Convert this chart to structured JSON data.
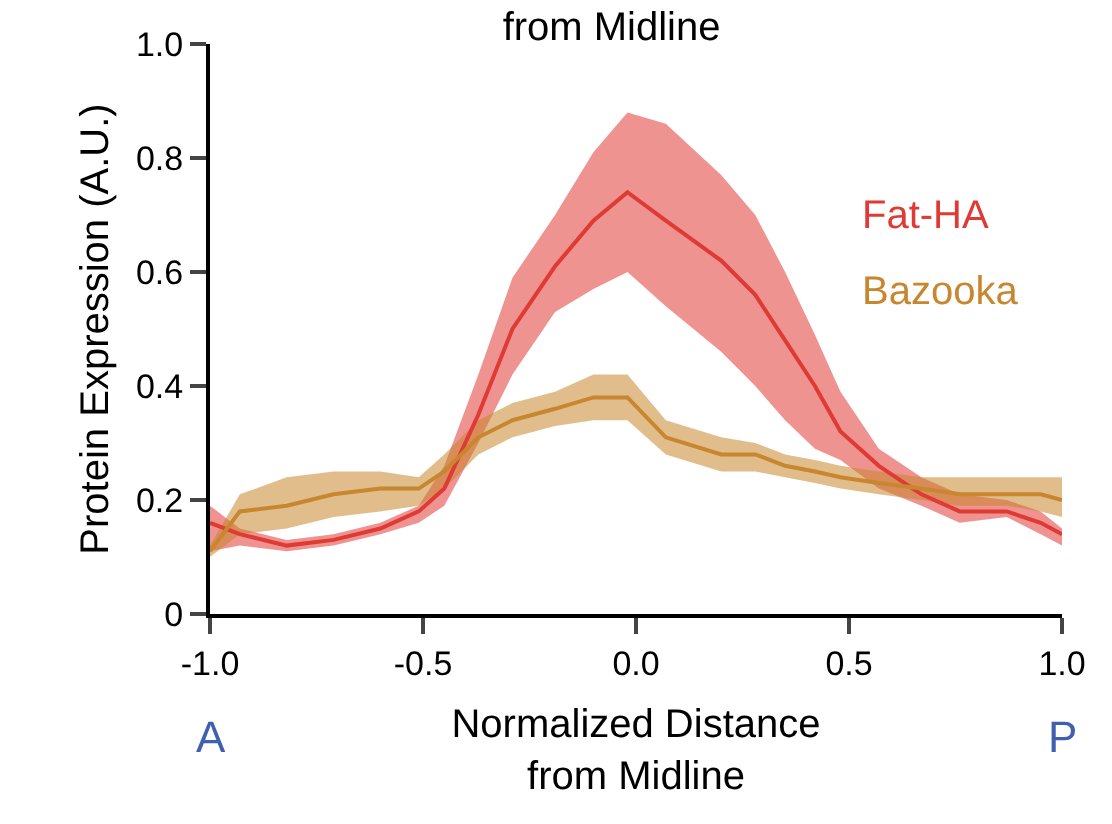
{
  "chart_data": {
    "type": "line",
    "title": "from Midline",
    "xlabel": "Normalized Distance\nfrom Midline",
    "ylabel": "Protein Expression (A.U.)",
    "annotations": [
      "A",
      "P"
    ],
    "xlim": [
      -1,
      1
    ],
    "xticks": [
      {
        "value": -1,
        "label": "-1.0"
      },
      {
        "value": -0.5,
        "label": "-0.5"
      },
      {
        "value": 0,
        "label": "0.0"
      },
      {
        "value": 0.5,
        "label": "0.5"
      },
      {
        "value": 1,
        "label": "1.0"
      }
    ],
    "ylim": [
      0,
      1
    ],
    "yticks": [
      0,
      0.2,
      0.4,
      0.6,
      0.8,
      {
        "value": 1,
        "label": "1.0"
      }
    ],
    "x": [
      -1.0,
      -0.93,
      -0.82,
      -0.71,
      -0.6,
      -0.51,
      -0.45,
      -0.37,
      -0.29,
      -0.19,
      -0.1,
      -0.02,
      0.07,
      0.2,
      0.28,
      0.35,
      0.42,
      0.48,
      0.57,
      0.67,
      0.76,
      0.87,
      0.95,
      1.0
    ],
    "grid": false,
    "legend": false,
    "marker": "none",
    "line_style": "solid",
    "series": [
      {
        "name": "Fat-HA",
        "color": "#e03a35",
        "values": [
          0.16,
          0.14,
          0.12,
          0.13,
          0.15,
          0.18,
          0.22,
          0.35,
          0.5,
          0.61,
          0.69,
          0.74,
          0.69,
          0.62,
          0.56,
          0.48,
          0.4,
          0.32,
          0.26,
          0.21,
          0.18,
          0.18,
          0.16,
          0.14
        ],
        "lower": [
          0.11,
          0.12,
          0.11,
          0.12,
          0.14,
          0.16,
          0.19,
          0.3,
          0.42,
          0.53,
          0.57,
          0.6,
          0.54,
          0.46,
          0.4,
          0.34,
          0.29,
          0.27,
          0.22,
          0.19,
          0.16,
          0.17,
          0.14,
          0.12
        ],
        "upper": [
          0.19,
          0.15,
          0.13,
          0.14,
          0.16,
          0.19,
          0.26,
          0.42,
          0.59,
          0.7,
          0.81,
          0.88,
          0.86,
          0.77,
          0.7,
          0.6,
          0.49,
          0.39,
          0.29,
          0.24,
          0.21,
          0.2,
          0.18,
          0.15
        ]
      },
      {
        "name": "Bazooka",
        "color": "#c8862e",
        "values": [
          0.11,
          0.18,
          0.19,
          0.21,
          0.22,
          0.22,
          0.25,
          0.31,
          0.34,
          0.36,
          0.38,
          0.38,
          0.31,
          0.28,
          0.28,
          0.26,
          0.25,
          0.24,
          0.23,
          0.22,
          0.21,
          0.21,
          0.21,
          0.2
        ],
        "lower": [
          0.1,
          0.14,
          0.15,
          0.17,
          0.18,
          0.19,
          0.22,
          0.28,
          0.31,
          0.33,
          0.34,
          0.34,
          0.28,
          0.25,
          0.25,
          0.24,
          0.23,
          0.22,
          0.21,
          0.2,
          0.19,
          0.19,
          0.18,
          0.17
        ],
        "upper": [
          0.12,
          0.21,
          0.24,
          0.25,
          0.25,
          0.24,
          0.28,
          0.34,
          0.37,
          0.39,
          0.42,
          0.42,
          0.34,
          0.31,
          0.3,
          0.28,
          0.27,
          0.26,
          0.25,
          0.24,
          0.24,
          0.24,
          0.24,
          0.24
        ]
      }
    ]
  }
}
